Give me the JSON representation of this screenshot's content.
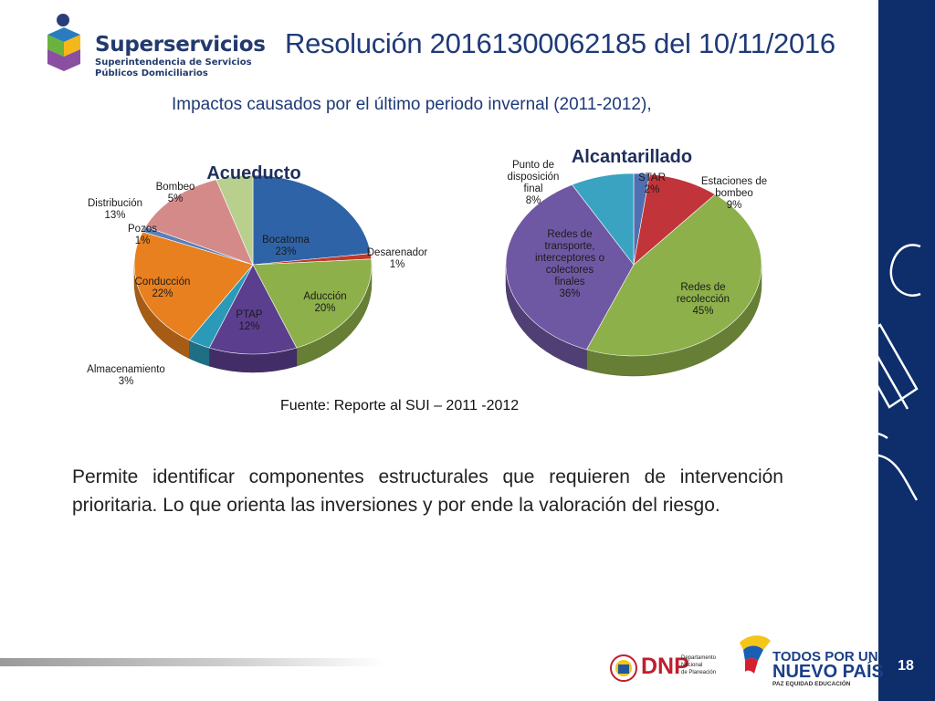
{
  "brand": {
    "name": "Superservicios",
    "sub_line1": "Superintendencia de Servicios",
    "sub_line2": "Públicos Domiciliarios"
  },
  "title": "Resolución 20161300062185 del 10/11/2016",
  "subtitle": "Impactos causados por el último periodo invernal (2011-2012),",
  "source": "Fuente: Reporte al SUI – 2011 -2012",
  "body": "Permite identificar componentes estructurales que requieren de intervención prioritaria. Lo que orienta las inversiones y por ende la valoración del riesgo.",
  "footer": {
    "dnp_label": "DNP",
    "dnp_small1": "Departamento",
    "dnp_small2": "Nacional",
    "dnp_small3": "de Planeación",
    "tpun_line1": "TODOS POR UN",
    "tpun_line2": "NUEVO PAÍS",
    "tpun_line3": "PAZ   EQUIDAD   EDUCACIÓN",
    "page_number": "18"
  },
  "chart_data": [
    {
      "type": "pie",
      "title": "Acueducto",
      "slices": [
        {
          "label": "Bocatoma",
          "value": 23,
          "value_label": "23%",
          "color": "#2e63a8"
        },
        {
          "label": "Desarenador",
          "value": 1,
          "value_label": "1%",
          "color": "#c0392b"
        },
        {
          "label": "Aducción",
          "value": 20,
          "value_label": "20%",
          "color": "#8db04a"
        },
        {
          "label": "PTAP",
          "value": 12,
          "value_label": "12%",
          "color": "#5b3e8e"
        },
        {
          "label": "Almacenamiento",
          "value": 3,
          "value_label": "3%",
          "color": "#2b9ab8"
        },
        {
          "label": "Conducción",
          "value": 22,
          "value_label": "22%",
          "color": "#e8801f"
        },
        {
          "label": "Pozos",
          "value": 1,
          "value_label": "1%",
          "color": "#5b7fb8"
        },
        {
          "label": "Distribución",
          "value": 13,
          "value_label": "13%",
          "color": "#d58a8a"
        },
        {
          "label": "Bombeo",
          "value": 5,
          "value_label": "5%",
          "color": "#b8cf8e"
        }
      ]
    },
    {
      "type": "pie",
      "title": "Alcantarillado",
      "slices": [
        {
          "label": "STAR",
          "value": 2,
          "value_label": "2%",
          "color": "#4f6fb0"
        },
        {
          "label": "Estaciones de bombeo",
          "value": 9,
          "value_label": "9%",
          "color": "#c0343a"
        },
        {
          "label": "Redes de recolección",
          "value": 45,
          "value_label": "45%",
          "color": "#8db04a"
        },
        {
          "label": "Redes de transporte, interceptores o colectores finales",
          "value": 36,
          "value_label": "36%",
          "color": "#6f58a3"
        },
        {
          "label": "Punto de disposición final",
          "value": 8,
          "value_label": "8%",
          "color": "#3aa3c2"
        }
      ]
    }
  ]
}
